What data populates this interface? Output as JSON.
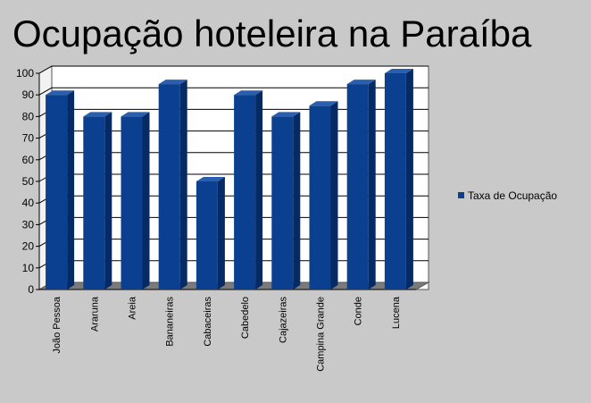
{
  "chart_data": {
    "type": "bar",
    "title": "Ocupação hoteleira na Paraíba",
    "categories": [
      "João Pessoa",
      "Araruna",
      "Areia",
      "Bananeiras",
      "Cabaceiras",
      "Cabedelo",
      "Cajazeiras",
      "Campina Grande",
      "Conde",
      "Lucena"
    ],
    "series": [
      {
        "name": "Taxa de Ocupação",
        "values": [
          90,
          80,
          80,
          95,
          50,
          90,
          80,
          85,
          95,
          100
        ]
      }
    ],
    "ylim": [
      0,
      100
    ],
    "yticks": [
      "0",
      "10",
      "20",
      "30",
      "40",
      "50",
      "60",
      "70",
      "80",
      "90",
      "100"
    ],
    "xlabel": "",
    "ylabel": "",
    "grid": true,
    "legend": "right",
    "colors": {
      "bar": "#0b3f8f",
      "bar_side": "#062a63",
      "bar_top": "#2a5fb0",
      "floor": "#7a7a7a",
      "plot_bg": "#ffffff",
      "grid": "#000000"
    }
  }
}
